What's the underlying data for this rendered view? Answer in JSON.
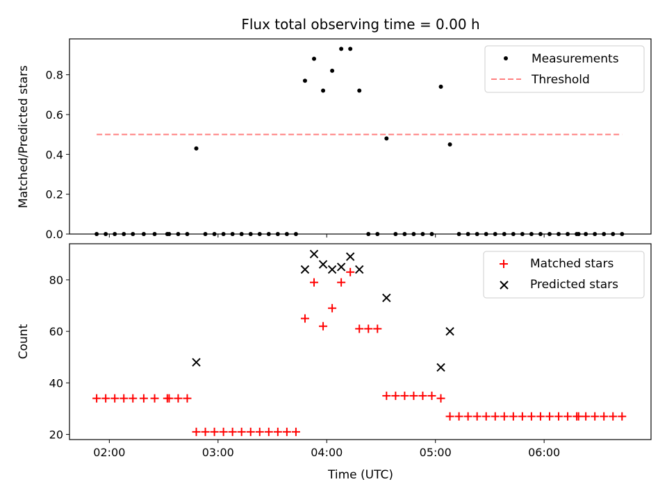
{
  "chart_data": [
    {
      "type": "scatter",
      "title": "Flux total observing time = 0.00 h",
      "ylabel": "Matched/Predicted stars",
      "xlabel": "",
      "ylim": [
        0,
        0.98
      ],
      "yticks": [
        "0.0",
        "0.2",
        "0.4",
        "0.6",
        "0.8"
      ],
      "ytick_values": [
        0,
        0.2,
        0.4,
        0.6,
        0.8
      ],
      "grid": false,
      "legend_position": "top-right",
      "series": [
        {
          "name": "Measurements",
          "marker": "dot",
          "color": "#000000",
          "x": [
            "01:53",
            "01:58",
            "02:03",
            "02:08",
            "02:13",
            "02:19",
            "02:25",
            "02:32",
            "02:33",
            "02:38",
            "02:43",
            "02:48",
            "02:53",
            "02:58",
            "03:03",
            "03:08",
            "03:13",
            "03:18",
            "03:23",
            "03:28",
            "03:33",
            "03:38",
            "03:43",
            "03:48",
            "03:53",
            "03:58",
            "04:03",
            "04:08",
            "04:13",
            "04:18",
            "04:23",
            "04:28",
            "04:33",
            "04:38",
            "04:43",
            "04:48",
            "04:53",
            "04:58",
            "05:03",
            "05:08",
            "05:13",
            "05:18",
            "05:23",
            "05:28",
            "05:33",
            "05:38",
            "05:43",
            "05:48",
            "05:53",
            "05:58",
            "06:03",
            "06:08",
            "06:13",
            "06:18",
            "06:19",
            "06:23",
            "06:28",
            "06:33",
            "06:38",
            "06:43"
          ],
          "y": [
            0,
            0,
            0,
            0,
            0,
            0,
            0,
            0,
            0,
            0,
            0,
            0.43,
            0,
            0,
            0,
            0,
            0,
            0,
            0,
            0,
            0,
            0,
            0,
            0.77,
            0.88,
            0.72,
            0.82,
            0.93,
            0.93,
            0.72,
            0,
            0,
            0.48,
            0,
            0,
            0,
            0,
            0,
            0.74,
            0.45,
            0,
            0,
            0,
            0,
            0,
            0,
            0,
            0,
            0,
            0,
            0,
            0,
            0,
            0,
            0,
            0,
            0,
            0,
            0,
            0
          ]
        },
        {
          "name": "Threshold",
          "style": "dashed",
          "color": "#ff7f7f",
          "x": [
            "01:53",
            "06:43"
          ],
          "y": [
            0.5,
            0.5
          ]
        }
      ]
    },
    {
      "type": "scatter",
      "title": "",
      "xlabel": "Time (UTC)",
      "ylabel": "Count",
      "ylim": [
        18,
        94
      ],
      "xlim": [
        "01:38",
        "06:59"
      ],
      "xticks": [
        "02:00",
        "03:00",
        "04:00",
        "05:00",
        "06:00"
      ],
      "yticks": [
        "20",
        "40",
        "60",
        "80"
      ],
      "ytick_values": [
        20,
        40,
        60,
        80
      ],
      "grid": false,
      "legend_position": "top-right",
      "series": [
        {
          "name": "Matched stars",
          "marker": "plus",
          "color": "#ff0000",
          "x": [
            "01:53",
            "01:58",
            "02:03",
            "02:08",
            "02:13",
            "02:19",
            "02:25",
            "02:32",
            "02:33",
            "02:38",
            "02:43",
            "02:48",
            "02:53",
            "02:58",
            "03:03",
            "03:08",
            "03:13",
            "03:18",
            "03:23",
            "03:28",
            "03:33",
            "03:38",
            "03:43",
            "03:48",
            "03:53",
            "03:58",
            "04:03",
            "04:08",
            "04:13",
            "04:18",
            "04:23",
            "04:28",
            "04:33",
            "04:38",
            "04:43",
            "04:48",
            "04:53",
            "04:58",
            "05:03",
            "05:08",
            "05:13",
            "05:18",
            "05:23",
            "05:28",
            "05:33",
            "05:38",
            "05:43",
            "05:48",
            "05:53",
            "05:58",
            "06:03",
            "06:08",
            "06:13",
            "06:18",
            "06:19",
            "06:23",
            "06:28",
            "06:33",
            "06:38",
            "06:43"
          ],
          "y": [
            34,
            34,
            34,
            34,
            34,
            34,
            34,
            34,
            34,
            34,
            34,
            21,
            21,
            21,
            21,
            21,
            21,
            21,
            21,
            21,
            21,
            21,
            21,
            65,
            79,
            62,
            69,
            79,
            83,
            61,
            61,
            61,
            35,
            35,
            35,
            35,
            35,
            35,
            34,
            27,
            27,
            27,
            27,
            27,
            27,
            27,
            27,
            27,
            27,
            27,
            27,
            27,
            27,
            27,
            27,
            27,
            27,
            27,
            27,
            27
          ]
        },
        {
          "name": "Predicted stars",
          "marker": "x",
          "color": "#000000",
          "x": [
            "02:48",
            "03:48",
            "03:53",
            "03:58",
            "04:03",
            "04:08",
            "04:13",
            "04:18",
            "04:33",
            "05:03",
            "05:08"
          ],
          "y": [
            48,
            84,
            90,
            86,
            84,
            85,
            89,
            84,
            73,
            46,
            60
          ]
        }
      ]
    }
  ]
}
